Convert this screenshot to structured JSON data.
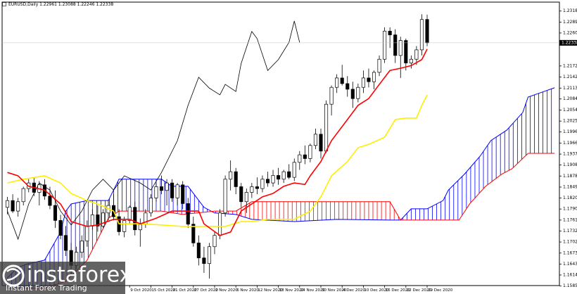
{
  "chart_data": {
    "type": "candlestick",
    "title": "EURUSD,Daily 1.22961 1.23088 1.22246 1.22338",
    "xlim": [
      3,
      107.9
    ],
    "ylim": [
      1.15638,
      1.2348
    ],
    "last_price": 1.22338,
    "up_color": "#ffffff",
    "down_color": "#000000",
    "xticks": [
      {
        "value": 27,
        "label": "9 Oct 2020"
      },
      {
        "value": 31,
        "label": "15 Oct 2020"
      },
      {
        "value": 35,
        "label": "21 Oct 2020"
      },
      {
        "value": 39,
        "label": "27 Oct 2020"
      },
      {
        "value": 43,
        "label": "2 Nov 2020"
      },
      {
        "value": 47,
        "label": "6 Nov 2020"
      },
      {
        "value": 51,
        "label": "12 Nov 2020"
      },
      {
        "value": 55,
        "label": "18 Nov 2020"
      },
      {
        "value": 59,
        "label": "24 Nov 2020"
      },
      {
        "value": 63,
        "label": "30 Nov 2020"
      },
      {
        "value": 67,
        "label": "4 Dec 2020"
      },
      {
        "value": 71,
        "label": "10 Dec 2020"
      },
      {
        "value": 75,
        "label": "16 Dec 2020"
      },
      {
        "value": 79,
        "label": "22 Dec 2020"
      },
      {
        "value": 83,
        "label": "29 Dec 2020"
      }
    ],
    "yticks": [
      1.23185,
      {
        "value": 1.2289,
        "label": "1.22890"
      },
      {
        "value": 1.226,
        "label": "1.22600"
      },
      {
        "value": 1.2172,
        "label": "1.21720"
      },
      1.21425,
      {
        "value": 1.2113,
        "label": "1.21130"
      },
      {
        "value": 1.2084,
        "label": "1.20840"
      },
      1.20545,
      {
        "value": 1.2025,
        "label": "1.20250"
      },
      {
        "value": 1.1996,
        "label": "1.19960"
      },
      1.19665,
      {
        "value": 1.1937,
        "label": "1.19370"
      },
      {
        "value": 1.1908,
        "label": "1.19080"
      },
      1.18785,
      {
        "value": 1.1849,
        "label": "1.18490"
      },
      {
        "value": 1.182,
        "label": "1.18200"
      },
      1.17905,
      {
        "value": 1.1761,
        "label": "1.17610"
      },
      {
        "value": 1.1732,
        "label": "1.17320"
      },
      1.17025,
      {
        "value": 1.1673,
        "label": "1.16730"
      },
      1.16435,
      1.16145,
      {
        "value": 1.1585,
        "label": "1.15850"
      }
    ],
    "candles": {
      "x": [
        4,
        5,
        6,
        7,
        8,
        9,
        10,
        11,
        12,
        13,
        14,
        15,
        16,
        17,
        18,
        19,
        20,
        21,
        22,
        23,
        24,
        25,
        26,
        27,
        28,
        29,
        30,
        31,
        32,
        33,
        34,
        35,
        36,
        37,
        38,
        39,
        40,
        41,
        42,
        43,
        44,
        45,
        46,
        47,
        48,
        49,
        50,
        51,
        52,
        53,
        54,
        55,
        56,
        57,
        58,
        59,
        60,
        61,
        62,
        63,
        64,
        65,
        66,
        67,
        68,
        69,
        70,
        71,
        72,
        73,
        74,
        75,
        76,
        77,
        78,
        79,
        80,
        81,
        82,
        83
      ],
      "open": [
        1.1795,
        1.1813,
        1.1785,
        1.181,
        1.1845,
        1.186,
        1.1835,
        1.1855,
        1.1825,
        1.18,
        1.176,
        1.172,
        1.168,
        1.164,
        1.1675,
        1.1705,
        1.1745,
        1.1775,
        1.1745,
        1.178,
        1.18,
        1.177,
        1.173,
        1.176,
        1.1795,
        1.1735,
        1.175,
        1.178,
        1.182,
        1.185,
        1.184,
        1.186,
        1.182,
        1.1855,
        1.1805,
        1.175,
        1.17,
        1.166,
        1.1645,
        1.169,
        1.172,
        1.178,
        1.187,
        1.189,
        1.185,
        1.181,
        1.1835,
        1.185,
        1.1845,
        1.187,
        1.186,
        1.188,
        1.187,
        1.189,
        1.1875,
        1.1915,
        1.1935,
        1.1925,
        1.196,
        1.199,
        1.1945,
        1.207,
        1.2115,
        1.214,
        1.2125,
        1.211,
        1.2085,
        1.2115,
        1.214,
        1.213,
        1.2155,
        1.219,
        1.2265,
        1.2255,
        1.22,
        1.224,
        1.218,
        1.219,
        1.2215,
        1.22961
      ],
      "high": [
        1.1823,
        1.183,
        1.182,
        1.185,
        1.187,
        1.1875,
        1.1865,
        1.187,
        1.185,
        1.184,
        1.1775,
        1.1745,
        1.17,
        1.169,
        1.172,
        1.176,
        1.179,
        1.18,
        1.179,
        1.1815,
        1.183,
        1.179,
        1.177,
        1.18,
        1.181,
        1.1765,
        1.179,
        1.183,
        1.186,
        1.188,
        1.187,
        1.187,
        1.186,
        1.1865,
        1.182,
        1.177,
        1.172,
        1.169,
        1.17,
        1.173,
        1.179,
        1.188,
        1.192,
        1.19,
        1.186,
        1.1845,
        1.186,
        1.1875,
        1.188,
        1.189,
        1.1895,
        1.19,
        1.1895,
        1.191,
        1.1925,
        1.1945,
        1.196,
        1.1965,
        1.2005,
        1.2005,
        1.208,
        1.212,
        1.215,
        1.2175,
        1.2145,
        1.213,
        1.2125,
        1.216,
        1.2165,
        1.216,
        1.22,
        1.2275,
        1.2275,
        1.227,
        1.225,
        1.2245,
        1.22,
        1.2225,
        1.231,
        1.23088
      ],
      "low": [
        1.1776,
        1.178,
        1.177,
        1.18,
        1.1835,
        1.1825,
        1.18,
        1.1815,
        1.179,
        1.174,
        1.171,
        1.1665,
        1.1612,
        1.163,
        1.166,
        1.169,
        1.1735,
        1.173,
        1.174,
        1.176,
        1.176,
        1.172,
        1.1715,
        1.175,
        1.172,
        1.169,
        1.174,
        1.177,
        1.181,
        1.183,
        1.18,
        1.181,
        1.18,
        1.179,
        1.174,
        1.169,
        1.164,
        1.162,
        1.1605,
        1.167,
        1.171,
        1.177,
        1.184,
        1.183,
        1.1795,
        1.178,
        1.182,
        1.183,
        1.1835,
        1.185,
        1.185,
        1.1855,
        1.186,
        1.187,
        1.1865,
        1.1895,
        1.191,
        1.1915,
        1.195,
        1.1925,
        1.194,
        1.204,
        1.21,
        1.212,
        1.209,
        1.206,
        1.2075,
        1.21,
        1.2115,
        1.211,
        1.2145,
        1.218,
        1.222,
        1.218,
        1.214,
        1.216,
        1.2165,
        1.2175,
        1.22,
        1.22246
      ],
      "close": [
        1.1813,
        1.1785,
        1.181,
        1.1845,
        1.186,
        1.1835,
        1.1855,
        1.1825,
        1.18,
        1.176,
        1.172,
        1.168,
        1.164,
        1.1675,
        1.1705,
        1.1745,
        1.1775,
        1.1745,
        1.178,
        1.18,
        1.177,
        1.173,
        1.176,
        1.1795,
        1.1735,
        1.175,
        1.178,
        1.182,
        1.185,
        1.184,
        1.186,
        1.182,
        1.1855,
        1.1805,
        1.175,
        1.17,
        1.166,
        1.1645,
        1.169,
        1.172,
        1.178,
        1.187,
        1.189,
        1.185,
        1.181,
        1.1835,
        1.185,
        1.1845,
        1.187,
        1.186,
        1.188,
        1.187,
        1.189,
        1.1875,
        1.1915,
        1.1935,
        1.1925,
        1.196,
        1.199,
        1.1945,
        1.207,
        1.2115,
        1.214,
        1.2125,
        1.211,
        1.2085,
        1.2115,
        1.214,
        1.213,
        1.2155,
        1.219,
        1.2265,
        1.2255,
        1.22,
        1.224,
        1.218,
        1.219,
        1.2215,
        1.2296,
        1.22338
      ]
    },
    "cloud": {
      "up_color": "#0000ff",
      "down_color": "#ff0000",
      "span_a": {
        "color": "#0000ff",
        "x": [
          4,
          6,
          8,
          11,
          14,
          15,
          16,
          19,
          23,
          25,
          33,
          35,
          38,
          41,
          43,
          47,
          50,
          58,
          66,
          76,
          78,
          80,
          83,
          86,
          87,
          90,
          93,
          95,
          98,
          101,
          102,
          105,
          107
        ],
        "values": [
          1.1607,
          1.1635,
          1.1645,
          1.1654,
          1.1729,
          1.1785,
          1.1804,
          1.1813,
          1.1813,
          1.187,
          1.187,
          1.1851,
          1.1851,
          1.1795,
          1.178,
          1.1776,
          1.1763,
          1.1757,
          1.1763,
          1.1761,
          1.1761,
          1.1791,
          1.1791,
          1.1813,
          1.1841,
          1.1883,
          1.1932,
          1.1973,
          1.2001,
          1.2048,
          1.2089,
          1.2104,
          1.2114
        ]
      },
      "span_b": {
        "color": "#ff0000",
        "x": [
          4,
          11,
          15,
          19,
          21,
          23,
          25,
          33,
          37,
          43,
          47,
          50,
          76,
          78,
          89,
          91,
          94,
          97,
          99,
          102,
          107
        ],
        "values": [
          1.1579,
          1.1579,
          1.1598,
          1.1654,
          1.171,
          1.1766,
          1.1785,
          1.1785,
          1.1776,
          1.1785,
          1.1785,
          1.181,
          1.181,
          1.1761,
          1.1761,
          1.1804,
          1.1851,
          1.1883,
          1.1898,
          1.1939,
          1.1939
        ]
      }
    },
    "lines": [
      {
        "color": "#000000",
        "width": 0.8,
        "x": [
          4,
          5,
          6,
          8,
          10,
          12,
          14,
          16,
          18,
          20,
          22,
          24,
          26,
          29,
          31,
          33,
          36,
          38,
          40,
          42,
          44,
          45,
          47,
          48,
          50,
          51,
          53,
          55,
          57,
          58,
          59
        ],
        "values": [
          1.1785,
          1.1748,
          1.171,
          1.1804,
          1.186,
          1.1841,
          1.1785,
          1.1748,
          1.1785,
          1.1841,
          1.187,
          1.1841,
          1.1879,
          1.186,
          1.1841,
          1.1888,
          1.1973,
          1.2067,
          1.2142,
          1.2113,
          1.2095,
          1.2123,
          1.2104,
          1.2179,
          1.2264,
          1.2245,
          1.216,
          1.2189,
          1.2235,
          1.2292,
          1.2235
        ]
      },
      {
        "color": "#ffee00",
        "width": 1.6,
        "x": [
          4,
          7,
          11,
          14,
          16,
          19,
          21,
          24,
          25,
          29,
          33,
          37,
          41,
          45,
          48,
          50,
          53,
          56,
          58,
          61,
          63,
          65,
          68,
          70,
          72,
          75,
          77,
          79,
          81,
          82,
          83
        ],
        "values": [
          1.186,
          1.187,
          1.1879,
          1.186,
          1.1832,
          1.1813,
          1.1804,
          1.1785,
          1.1751,
          1.1751,
          1.1748,
          1.1744,
          1.1744,
          1.1744,
          1.1757,
          1.1757,
          1.1763,
          1.1763,
          1.1763,
          1.1785,
          1.1823,
          1.1879,
          1.1917,
          1.1954,
          1.1963,
          1.1982,
          1.2029,
          1.2033,
          1.2033,
          1.2067,
          1.2095
        ]
      },
      {
        "color": "#ff0000",
        "width": 1.6,
        "x": [
          4,
          6,
          8,
          11,
          14,
          16,
          19,
          21,
          24,
          27,
          29,
          32,
          35,
          37,
          40,
          41,
          44,
          46,
          48,
          50,
          52,
          54,
          56,
          58,
          60,
          61,
          63,
          65,
          68,
          70,
          72,
          74,
          76,
          78,
          80,
          82,
          83
        ],
        "values": [
          1.1888,
          1.1879,
          1.1851,
          1.1841,
          1.1804,
          1.1757,
          1.1744,
          1.1748,
          1.1763,
          1.1763,
          1.1751,
          1.1766,
          1.1785,
          1.1785,
          1.1785,
          1.1751,
          1.172,
          1.1729,
          1.1785,
          1.1804,
          1.1823,
          1.1832,
          1.1851,
          1.186,
          1.1856,
          1.1879,
          1.1917,
          1.1973,
          1.2029,
          1.2067,
          1.2085,
          1.2123,
          1.216,
          1.2166,
          1.2173,
          1.2189,
          1.2217
        ]
      }
    ],
    "watermark": {
      "brand": "instaforex",
      "tagline": "Instant Forex Trading"
    }
  }
}
